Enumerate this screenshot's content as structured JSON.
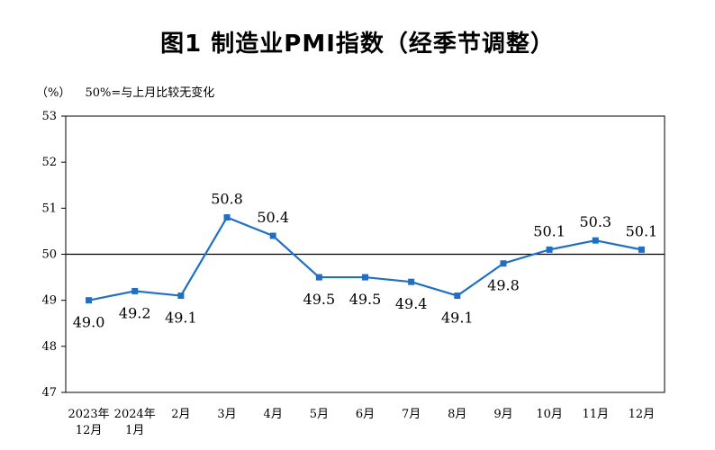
{
  "page": {
    "title": "图1  制造业PMI指数（经季节调整）",
    "unit": "（%）",
    "note": "50%=与上月比较无变化"
  },
  "chart_data": {
    "type": "line",
    "title": "图1  制造业PMI指数（经季节调整）",
    "ylabel": "（%）",
    "ylim": [
      47,
      53
    ],
    "yticks": [
      47,
      48,
      49,
      50,
      51,
      52,
      53
    ],
    "reference_line": 50,
    "categories": [
      [
        "2023年",
        "12月"
      ],
      [
        "2024年",
        "1月"
      ],
      [
        "2月"
      ],
      [
        "3月"
      ],
      [
        "4月"
      ],
      [
        "5月"
      ],
      [
        "6月"
      ],
      [
        "7月"
      ],
      [
        "8月"
      ],
      [
        "9月"
      ],
      [
        "10月"
      ],
      [
        "11月"
      ],
      [
        "12月"
      ]
    ],
    "series": [
      {
        "values": [
          49.0,
          49.2,
          49.1,
          50.8,
          50.4,
          49.5,
          49.5,
          49.4,
          49.1,
          49.8,
          50.1,
          50.3,
          50.1
        ],
        "labels": [
          "49.0",
          "49.2",
          "49.1",
          "50.8",
          "50.4",
          "49.5",
          "49.5",
          "49.4",
          "49.1",
          "49.8",
          "50.1",
          "50.3",
          "50.1"
        ],
        "label_positions": [
          "below",
          "below",
          "below",
          "above",
          "above",
          "below",
          "below",
          "below",
          "below",
          "below",
          "above",
          "above",
          "above"
        ],
        "color": "#1f6fc5"
      }
    ],
    "grid": false
  }
}
